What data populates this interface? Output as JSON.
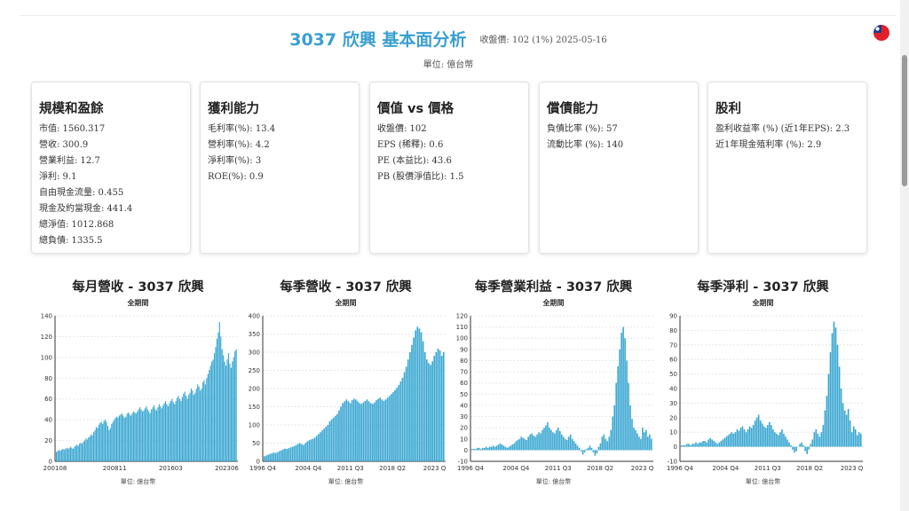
{
  "header": {
    "title": "3037 欣興 基本面分析",
    "close_info": "收盤價: 102 (1%) 2025-05-16",
    "unit": "單位: 億台幣"
  },
  "flag_icon": "taiwan-flag-icon",
  "cards": [
    {
      "title": "規模和盈餘",
      "lines": [
        "市值: 1560.317",
        "營收: 300.9",
        "營業利益: 12.7",
        "淨利: 9.1",
        "自由現金流量: 0.455",
        "現金及約當現金: 441.4",
        "總淨值: 1012.868",
        "總負債: 1335.5"
      ]
    },
    {
      "title": "獲利能力",
      "lines": [
        "毛利率(%): 13.4",
        "營利率(%): 4.2",
        "淨利率(%): 3",
        "ROE(%): 0.9"
      ]
    },
    {
      "title": "價值 vs 價格",
      "lines": [
        "收盤價: 102",
        "EPS (稀釋): 0.6",
        "PE (本益比): 43.6",
        "PB (股價淨值比): 1.5"
      ]
    },
    {
      "title": "償債能力",
      "lines": [
        "負債比率 (%): 57",
        "流動比率 (%): 140"
      ]
    },
    {
      "title": "股利",
      "lines": [
        "盈利收益率 (%) (近1年EPS): 2.3",
        "近1年現金殖利率 (%): 2.9"
      ]
    }
  ],
  "charts": [
    {
      "title": "每月營收 - 3037 欣興",
      "subtitle": "全期間",
      "unit": "單位: 億台幣"
    },
    {
      "title": "每季營收 - 3037 欣興",
      "subtitle": "全期間",
      "unit": "單位: 億台幣"
    },
    {
      "title": "每季營業利益 - 3037 欣興",
      "subtitle": "全期間",
      "unit": "單位: 億台幣"
    },
    {
      "title": "每季淨利 - 3037 欣興",
      "subtitle": "全期間",
      "unit": "單位: 億台幣"
    }
  ],
  "chart_data": [
    {
      "type": "bar",
      "title": "每月營收 - 3037 欣興",
      "subtitle": "全期間",
      "xlabel": "",
      "ylabel": "",
      "ylim": [
        0,
        140
      ],
      "yticks": [
        0,
        20,
        40,
        60,
        80,
        100,
        120,
        140
      ],
      "xticks": [
        "200108",
        "200811",
        "201603",
        "202306"
      ],
      "color": "#3aa7d2",
      "series": [
        {
          "values": [
            9,
            10,
            11,
            10,
            11,
            12,
            11,
            12,
            13,
            12,
            13,
            14,
            13,
            12,
            14,
            15,
            16,
            15,
            17,
            18,
            17,
            19,
            20,
            22,
            21,
            23,
            24,
            26,
            25,
            28,
            30,
            33,
            32,
            35,
            37,
            38,
            36,
            39,
            40,
            38,
            34,
            30,
            32,
            36,
            38,
            40,
            42,
            43,
            42,
            44,
            45,
            46,
            44,
            42,
            43,
            46,
            47,
            45,
            44,
            46,
            48,
            47,
            46,
            48,
            50,
            52,
            50,
            48,
            49,
            51,
            53,
            50,
            48,
            46,
            50,
            52,
            54,
            50,
            49,
            52,
            55,
            53,
            51,
            54,
            56,
            58,
            55,
            53,
            56,
            58,
            60,
            57,
            55,
            58,
            61,
            63,
            60,
            58,
            62,
            65,
            67,
            63,
            60,
            64,
            66,
            70,
            68,
            64,
            66,
            70,
            74,
            72,
            68,
            70,
            76,
            78,
            74,
            80,
            84,
            88,
            92,
            96,
            98,
            104,
            110,
            118,
            124,
            134,
            120,
            108,
            102,
            96,
            92,
            98,
            104,
            94,
            90,
            96,
            100,
            106,
            108
          ]
        }
      ]
    },
    {
      "type": "bar",
      "title": "每季營收 - 3037 欣興",
      "subtitle": "全期間",
      "xlabel": "",
      "ylabel": "",
      "ylim": [
        0,
        400
      ],
      "yticks": [
        0,
        50,
        100,
        150,
        200,
        250,
        300,
        350,
        400
      ],
      "xticks": [
        "1996 Q4",
        "2004 Q4",
        "2011 Q3",
        "2018 Q2",
        "2023 Q"
      ],
      "color": "#3aa7d2",
      "series": [
        {
          "values": [
            14,
            16,
            18,
            20,
            22,
            24,
            23,
            25,
            28,
            30,
            33,
            35,
            34,
            36,
            38,
            40,
            42,
            45,
            48,
            50,
            47,
            45,
            50,
            55,
            58,
            60,
            62,
            65,
            70,
            75,
            80,
            85,
            90,
            95,
            100,
            110,
            115,
            120,
            125,
            130,
            140,
            150,
            160,
            165,
            170,
            165,
            160,
            168,
            172,
            170,
            165,
            160,
            158,
            162,
            166,
            170,
            165,
            160,
            158,
            162,
            168,
            172,
            175,
            170,
            166,
            170,
            175,
            180,
            185,
            190,
            196,
            202,
            210,
            220,
            230,
            245,
            260,
            280,
            300,
            320,
            340,
            360,
            370,
            365,
            355,
            330,
            300,
            280,
            270,
            265,
            275,
            290,
            300,
            310,
            305,
            290,
            300
          ]
        }
      ]
    },
    {
      "type": "bar",
      "title": "每季營業利益 - 3037 欣興",
      "subtitle": "全期間",
      "xlabel": "",
      "ylabel": "",
      "ylim": [
        -10,
        120
      ],
      "yticks": [
        -10,
        0,
        10,
        20,
        30,
        40,
        50,
        60,
        70,
        80,
        90,
        100,
        110,
        120
      ],
      "xticks": [
        "1996 Q4",
        "2004 Q4",
        "2011 Q3",
        "2018 Q2",
        "2023 Q"
      ],
      "color": "#3aa7d2",
      "series": [
        {
          "values": [
            1,
            1,
            1,
            2,
            2,
            1,
            2,
            2,
            3,
            2,
            3,
            3,
            4,
            3,
            4,
            5,
            6,
            5,
            4,
            3,
            2,
            3,
            4,
            5,
            6,
            8,
            9,
            10,
            12,
            11,
            10,
            9,
            12,
            14,
            15,
            13,
            12,
            14,
            16,
            15,
            18,
            20,
            22,
            25,
            20,
            18,
            16,
            15,
            18,
            20,
            17,
            14,
            12,
            10,
            9,
            12,
            14,
            10,
            8,
            6,
            4,
            2,
            -1,
            -4,
            -2,
            1,
            2,
            4,
            2,
            -2,
            -5,
            -3,
            3,
            6,
            12,
            14,
            10,
            8,
            12,
            18,
            30,
            40,
            60,
            75,
            90,
            105,
            110,
            100,
            80,
            60,
            40,
            28,
            20,
            18,
            15,
            12,
            10,
            20,
            16,
            18,
            12,
            14,
            10
          ]
        }
      ]
    },
    {
      "type": "bar",
      "title": "每季淨利 - 3037 欣興",
      "subtitle": "全期間",
      "xlabel": "",
      "ylabel": "",
      "ylim": [
        -10,
        90
      ],
      "yticks": [
        -10,
        0,
        10,
        20,
        30,
        40,
        50,
        60,
        70,
        80,
        90
      ],
      "xticks": [
        "1996 Q4",
        "2004 Q4",
        "2011 Q3",
        "2018 Q2",
        "2023 Q"
      ],
      "color": "#3aa7d2",
      "series": [
        {
          "values": [
            1,
            1,
            1,
            2,
            2,
            1,
            2,
            2,
            3,
            2,
            3,
            3,
            4,
            4,
            3,
            5,
            6,
            5,
            4,
            3,
            2,
            3,
            4,
            5,
            6,
            7,
            8,
            9,
            10,
            9,
            10,
            12,
            11,
            13,
            14,
            12,
            10,
            12,
            14,
            13,
            15,
            18,
            20,
            22,
            18,
            16,
            14,
            13,
            15,
            17,
            15,
            12,
            10,
            9,
            8,
            10,
            12,
            9,
            7,
            5,
            3,
            1,
            -2,
            -4,
            -3,
            0,
            2,
            3,
            1,
            -3,
            -5,
            -2,
            2,
            5,
            10,
            12,
            9,
            7,
            10,
            15,
            25,
            35,
            50,
            65,
            78,
            86,
            82,
            70,
            55,
            40,
            30,
            25,
            22,
            26,
            18,
            10,
            14,
            12,
            8,
            10,
            9
          ]
        }
      ]
    }
  ]
}
